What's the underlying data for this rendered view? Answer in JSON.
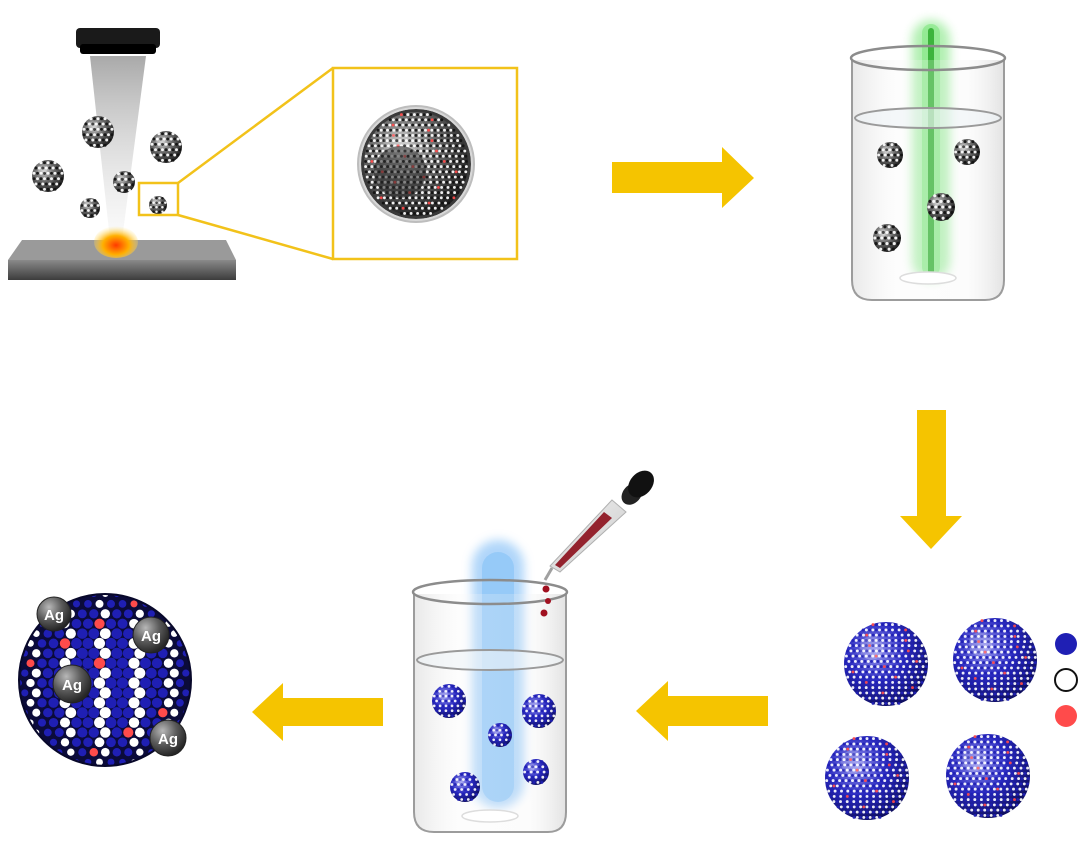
{
  "colors": {
    "arrow": "#f5c400",
    "zoom_box": "#f2c21a",
    "atom_blue": "#1f1fb4",
    "atom_white": "#ffffff",
    "atom_red": "#ff4b4b",
    "atom_black": "#111111",
    "silver": "#555555",
    "glow_green": "#55dd55",
    "glow_blue": "#6eb4f5",
    "drop_red": "#a01020"
  },
  "labels": {
    "silver": "Ag"
  },
  "legend": {
    "swatches": [
      {
        "name": "blue-atom",
        "color": "#1f1fb4"
      },
      {
        "name": "white-atom",
        "color": "#ffffff"
      },
      {
        "name": "red-atom",
        "color": "#ff4b4b"
      }
    ]
  },
  "icons": [
    "laser-head-icon",
    "laser-beam-icon",
    "substrate-icon",
    "beaker-icon",
    "dropper-icon",
    "arrow-right-icon",
    "arrow-down-icon",
    "arrow-left-icon"
  ]
}
